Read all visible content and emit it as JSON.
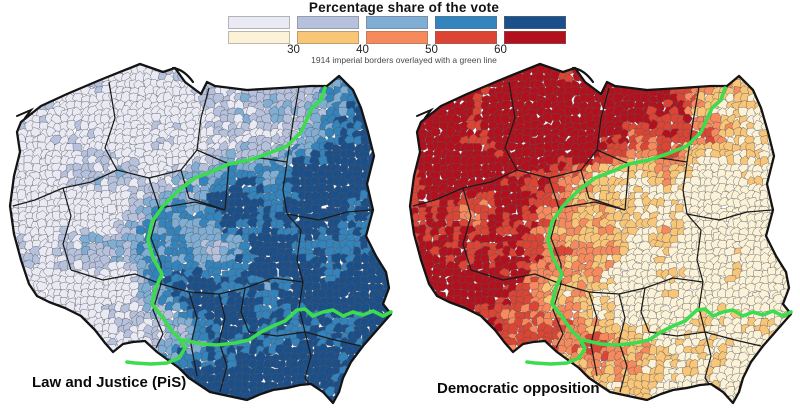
{
  "legend": {
    "title": "Percentage share of the vote",
    "ticks": [
      "30",
      "40",
      "50",
      "60"
    ],
    "note": "1914 imperial borders overlayed with a green line",
    "blue_scale": [
      "#e9eaf4",
      "#b6c2dd",
      "#7fadd3",
      "#3383bd",
      "#1b4f8a"
    ],
    "red_scale": [
      "#fbf2d8",
      "#f9c678",
      "#f68a5c",
      "#dc4433",
      "#b2101c"
    ],
    "green_line_color": "#3ddc4e",
    "cell_stroke_color": "#55565a",
    "region_border_color": "#1b1b1b",
    "outline_color": "#141414"
  },
  "maps": [
    {
      "label": "Law and Justice (PiS)",
      "palette": "blue_scale",
      "pattern": "higher share east/south-east of the 1914 border"
    },
    {
      "label": "Democratic opposition",
      "palette": "red_scale",
      "pattern": "higher share west/north of the 1914 border"
    }
  ],
  "chart_data": {
    "type": "choropleth_map",
    "region": "Poland (municipalities)",
    "measure": "Percentage share of the vote",
    "class_breaks": [
      30,
      40,
      50,
      60
    ],
    "classes": [
      "<30",
      "30-40",
      "40-50",
      "50-60",
      ">60"
    ],
    "series": [
      {
        "name": "Law and Justice (PiS)",
        "palette": [
          "#e9eaf4",
          "#b6c2dd",
          "#7fadd3",
          "#3383bd",
          "#1b4f8a"
        ],
        "spatial_pattern": "dark (high) in former Russian and Austrian partitions, light (low) in former German partition"
      },
      {
        "name": "Democratic opposition",
        "palette": [
          "#fbf2d8",
          "#f9c678",
          "#f68a5c",
          "#dc4433",
          "#b2101c"
        ],
        "spatial_pattern": "dark (high) in former German partition, light (low) in east and south-east"
      }
    ],
    "overlay": "1914 imperial borders overlayed with a green line",
    "legend_position": "top-center"
  }
}
